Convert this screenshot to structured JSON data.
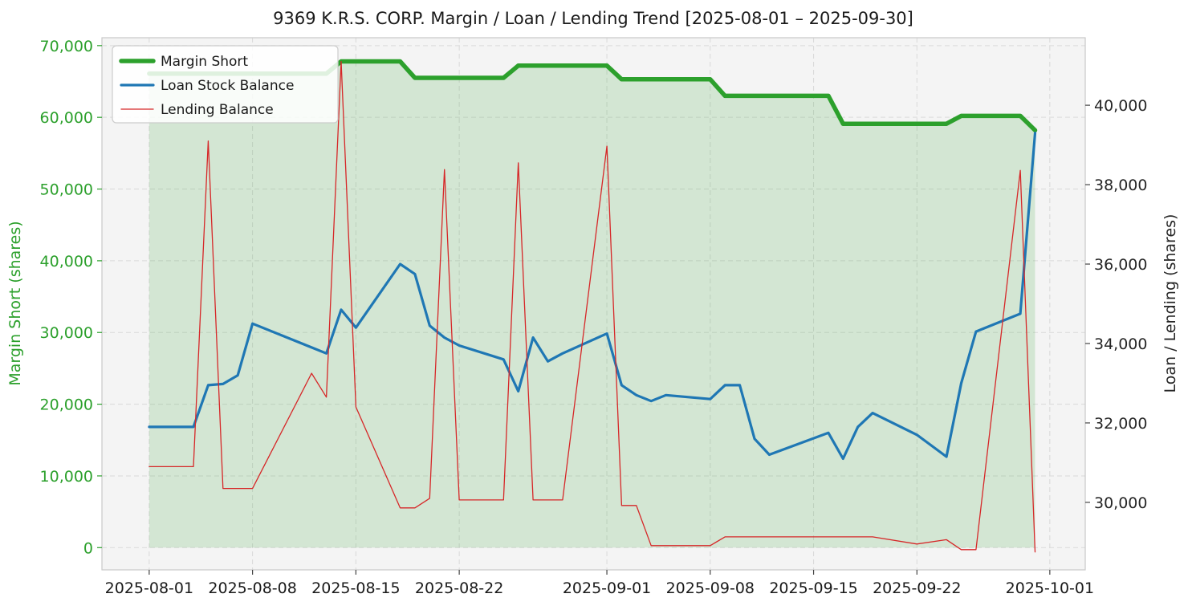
{
  "chart_data": {
    "type": "line",
    "title": "9369 K.R.S. CORP. Margin / Loan / Lending Trend [2025-08-01 – 2025-09-30]",
    "plot_bg": "#f4f4f4",
    "grid": {
      "dashed": true,
      "color": "#d9d9d9"
    },
    "spine_color": "#c9c9c9",
    "x": {
      "dates": [
        "2025-08-01",
        "2025-08-04",
        "2025-08-05",
        "2025-08-06",
        "2025-08-07",
        "2025-08-08",
        "2025-08-12",
        "2025-08-13",
        "2025-08-14",
        "2025-08-15",
        "2025-08-18",
        "2025-08-19",
        "2025-08-20",
        "2025-08-21",
        "2025-08-22",
        "2025-08-25",
        "2025-08-26",
        "2025-08-27",
        "2025-08-28",
        "2025-08-29",
        "2025-09-01",
        "2025-09-02",
        "2025-09-03",
        "2025-09-04",
        "2025-09-05",
        "2025-09-08",
        "2025-09-09",
        "2025-09-10",
        "2025-09-11",
        "2025-09-12",
        "2025-09-16",
        "2025-09-17",
        "2025-09-18",
        "2025-09-19",
        "2025-09-22",
        "2025-09-24",
        "2025-09-25",
        "2025-09-26",
        "2025-09-29",
        "2025-09-30"
      ],
      "day_offsets": [
        0,
        3,
        4,
        5,
        6,
        7,
        11,
        12,
        13,
        14,
        17,
        18,
        19,
        20,
        21,
        24,
        25,
        26,
        27,
        28,
        31,
        32,
        33,
        34,
        35,
        38,
        39,
        40,
        41,
        42,
        46,
        47,
        48,
        49,
        52,
        54,
        55,
        56,
        59,
        60
      ],
      "lim": [
        -3.2,
        63.4
      ],
      "ticks": [
        {
          "day": 0,
          "label": "2025-08-01"
        },
        {
          "day": 7,
          "label": "2025-08-08"
        },
        {
          "day": 14,
          "label": "2025-08-15"
        },
        {
          "day": 21,
          "label": "2025-08-22"
        },
        {
          "day": 31,
          "label": "2025-09-01"
        },
        {
          "day": 38,
          "label": "2025-09-08"
        },
        {
          "day": 45,
          "label": "2025-09-15"
        },
        {
          "day": 52,
          "label": "2025-09-22"
        },
        {
          "day": 61,
          "label": "2025-10-01"
        }
      ]
    },
    "left_axis": {
      "label": "Margin Short (shares)",
      "color": "#2ca02c",
      "lim": [
        -3100,
        71100
      ],
      "ticks": [
        0,
        10000,
        20000,
        30000,
        40000,
        50000,
        60000,
        70000
      ]
    },
    "right_axis": {
      "label": "Loan / Lending (shares)",
      "color": "#262626",
      "lim": [
        28300,
        41700
      ],
      "ticks": [
        30000,
        32000,
        34000,
        36000,
        38000,
        40000
      ]
    },
    "series": [
      {
        "name": "Margin Short",
        "axis": "left",
        "color": "#2ca02c",
        "line_width": 5.5,
        "area_fill": "rgba(44,160,44,0.16)",
        "fill_to": 0,
        "values": [
          66100,
          66100,
          66100,
          66100,
          66100,
          66100,
          66100,
          66100,
          67800,
          67800,
          67800,
          65500,
          65500,
          65500,
          65500,
          65500,
          67200,
          67200,
          67200,
          67200,
          67200,
          65300,
          65300,
          65300,
          65300,
          65300,
          63000,
          63000,
          63000,
          63000,
          63000,
          59100,
          59100,
          59100,
          59100,
          59100,
          60200,
          60200,
          60200,
          58200
        ]
      },
      {
        "name": "Loan Stock Balance",
        "axis": "right",
        "color": "#1f77b4",
        "line_width": 3.2,
        "values": [
          31900,
          31900,
          32950,
          32980,
          33200,
          34500,
          33900,
          33750,
          34850,
          34400,
          36000,
          35750,
          34450,
          34150,
          33950,
          33600,
          32800,
          34150,
          33550,
          33750,
          34250,
          32950,
          32700,
          32550,
          32700,
          32600,
          32950,
          32950,
          31600,
          31200,
          31750,
          31100,
          31900,
          32250,
          31700,
          31150,
          33000,
          34300,
          34750,
          39300
        ]
      },
      {
        "name": "Lending Balance",
        "axis": "right",
        "color": "#d62728",
        "line_width": 1.3,
        "values": [
          30900,
          30900,
          39100,
          30350,
          30350,
          30350,
          33250,
          32650,
          41100,
          32400,
          29860,
          29860,
          30100,
          38380,
          30060,
          30060,
          38550,
          30060,
          30060,
          30060,
          38970,
          29920,
          29920,
          28910,
          28910,
          28910,
          29130,
          29130,
          29130,
          29130,
          29130,
          29130,
          29130,
          29130,
          28950,
          29060,
          28810,
          28810,
          38360,
          28750
        ]
      }
    ],
    "legend": {
      "position": "top-left",
      "items": [
        "Margin Short",
        "Loan Stock Balance",
        "Lending Balance"
      ]
    }
  }
}
